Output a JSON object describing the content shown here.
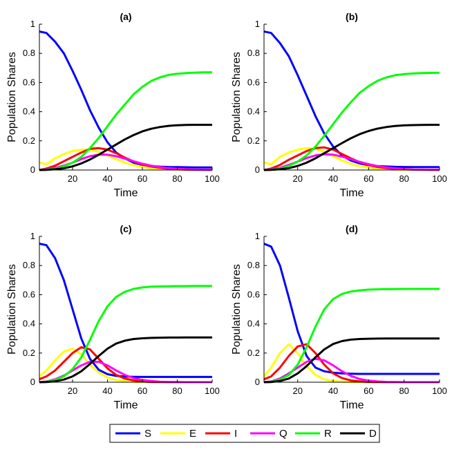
{
  "chart_data": {
    "type": "line",
    "xlim": [
      1,
      100
    ],
    "ylim": [
      0,
      1
    ],
    "x_ticks": [
      20,
      40,
      60,
      80,
      100
    ],
    "y_ticks": [
      0,
      0.2,
      0.4,
      0.6,
      0.8,
      1
    ],
    "y_tick_labels": [
      "0",
      "0.2",
      "0.4",
      "0.6",
      "0.8",
      "1"
    ],
    "xlabel": "Time",
    "ylabel": "Population Shares",
    "legend": {
      "position": "bottom-center",
      "entries": [
        {
          "name": "S",
          "color": "#0000ff"
        },
        {
          "name": "E",
          "color": "#ffff00"
        },
        {
          "name": "I",
          "color": "#ff0000"
        },
        {
          "name": "Q",
          "color": "#ff00ff"
        },
        {
          "name": "R",
          "color": "#00ff00"
        },
        {
          "name": "D",
          "color": "#000000"
        }
      ]
    },
    "panels": [
      {
        "title": "(a)",
        "x": [
          1,
          5,
          10,
          15,
          20,
          25,
          30,
          35,
          40,
          45,
          50,
          55,
          60,
          65,
          70,
          75,
          80,
          85,
          90,
          95,
          100
        ],
        "series": [
          {
            "name": "S",
            "values": [
              0.95,
              0.94,
              0.88,
              0.8,
              0.68,
              0.55,
              0.41,
              0.29,
              0.19,
              0.12,
              0.08,
              0.05,
              0.035,
              0.027,
              0.023,
              0.021,
              0.02,
              0.019,
              0.018,
              0.018,
              0.018
            ]
          },
          {
            "name": "E",
            "values": [
              0.05,
              0.04,
              0.08,
              0.11,
              0.13,
              0.14,
              0.14,
              0.125,
              0.1,
              0.075,
              0.05,
              0.033,
              0.021,
              0.013,
              0.008,
              0.005,
              0.003,
              0.002,
              0.001,
              0.001,
              0.0
            ]
          },
          {
            "name": "I",
            "values": [
              0.0,
              0.01,
              0.03,
              0.06,
              0.09,
              0.12,
              0.145,
              0.15,
              0.14,
              0.115,
              0.085,
              0.058,
              0.038,
              0.024,
              0.015,
              0.009,
              0.005,
              0.003,
              0.002,
              0.001,
              0.001
            ]
          },
          {
            "name": "Q",
            "values": [
              0.0,
              0.005,
              0.015,
              0.03,
              0.05,
              0.075,
              0.095,
              0.105,
              0.105,
              0.095,
              0.078,
              0.06,
              0.043,
              0.03,
              0.02,
              0.013,
              0.008,
              0.005,
              0.003,
              0.002,
              0.001
            ]
          },
          {
            "name": "R",
            "values": [
              0.0,
              0.002,
              0.01,
              0.025,
              0.05,
              0.09,
              0.15,
              0.22,
              0.3,
              0.38,
              0.45,
              0.52,
              0.57,
              0.61,
              0.635,
              0.652,
              0.66,
              0.665,
              0.668,
              0.67,
              0.67
            ]
          },
          {
            "name": "D",
            "values": [
              0.0,
              0.001,
              0.005,
              0.012,
              0.025,
              0.045,
              0.072,
              0.105,
              0.14,
              0.175,
              0.21,
              0.24,
              0.265,
              0.283,
              0.295,
              0.303,
              0.307,
              0.309,
              0.31,
              0.31,
              0.31
            ]
          }
        ]
      },
      {
        "title": "(b)",
        "x": [
          1,
          5,
          10,
          15,
          20,
          25,
          30,
          35,
          40,
          45,
          50,
          55,
          60,
          65,
          70,
          75,
          80,
          85,
          90,
          95,
          100
        ],
        "series": [
          {
            "name": "S",
            "values": [
              0.95,
              0.94,
              0.87,
              0.78,
              0.65,
              0.51,
              0.37,
              0.25,
              0.16,
              0.1,
              0.065,
              0.045,
              0.033,
              0.027,
              0.024,
              0.022,
              0.021,
              0.02,
              0.02,
              0.02,
              0.02
            ]
          },
          {
            "name": "E",
            "values": [
              0.05,
              0.04,
              0.09,
              0.12,
              0.14,
              0.15,
              0.145,
              0.125,
              0.095,
              0.065,
              0.042,
              0.026,
              0.016,
              0.01,
              0.006,
              0.004,
              0.002,
              0.001,
              0.001,
              0.0,
              0.0
            ]
          },
          {
            "name": "I",
            "values": [
              0.0,
              0.01,
              0.035,
              0.07,
              0.1,
              0.13,
              0.15,
              0.155,
              0.14,
              0.11,
              0.08,
              0.053,
              0.034,
              0.021,
              0.013,
              0.008,
              0.005,
              0.003,
              0.002,
              0.001,
              0.001
            ]
          },
          {
            "name": "Q",
            "values": [
              0.0,
              0.005,
              0.015,
              0.035,
              0.058,
              0.082,
              0.1,
              0.108,
              0.105,
              0.092,
              0.074,
              0.056,
              0.04,
              0.027,
              0.018,
              0.012,
              0.007,
              0.004,
              0.003,
              0.002,
              0.001
            ]
          },
          {
            "name": "R",
            "values": [
              0.0,
              0.002,
              0.01,
              0.028,
              0.058,
              0.1,
              0.16,
              0.235,
              0.315,
              0.395,
              0.465,
              0.53,
              0.575,
              0.612,
              0.635,
              0.65,
              0.658,
              0.662,
              0.665,
              0.666,
              0.667
            ]
          },
          {
            "name": "D",
            "values": [
              0.0,
              0.001,
              0.005,
              0.013,
              0.028,
              0.05,
              0.08,
              0.115,
              0.15,
              0.185,
              0.218,
              0.246,
              0.268,
              0.284,
              0.295,
              0.302,
              0.306,
              0.308,
              0.309,
              0.31,
              0.31
            ]
          }
        ]
      },
      {
        "title": "(c)",
        "x": [
          1,
          5,
          10,
          15,
          20,
          25,
          30,
          35,
          40,
          45,
          50,
          55,
          60,
          65,
          70,
          75,
          80,
          85,
          90,
          95,
          100
        ],
        "series": [
          {
            "name": "S",
            "values": [
              0.95,
              0.94,
              0.85,
              0.7,
              0.5,
              0.3,
              0.16,
              0.085,
              0.055,
              0.043,
              0.039,
              0.037,
              0.036,
              0.036,
              0.036,
              0.036,
              0.036,
              0.036,
              0.036,
              0.036,
              0.036
            ]
          },
          {
            "name": "E",
            "values": [
              0.04,
              0.08,
              0.15,
              0.21,
              0.23,
              0.19,
              0.12,
              0.065,
              0.032,
              0.015,
              0.007,
              0.003,
              0.001,
              0.0,
              0.0,
              0.0,
              0.0,
              0.0,
              0.0,
              0.0,
              0.0
            ]
          },
          {
            "name": "I",
            "values": [
              0.02,
              0.04,
              0.08,
              0.14,
              0.2,
              0.24,
              0.225,
              0.16,
              0.095,
              0.05,
              0.025,
              0.012,
              0.005,
              0.002,
              0.001,
              0.0,
              0.0,
              0.0,
              0.0,
              0.0,
              0.0
            ]
          },
          {
            "name": "Q",
            "values": [
              0.0,
              0.005,
              0.02,
              0.045,
              0.08,
              0.115,
              0.14,
              0.14,
              0.115,
              0.08,
              0.05,
              0.028,
              0.015,
              0.008,
              0.004,
              0.002,
              0.001,
              0.0,
              0.0,
              0.0,
              0.0
            ]
          },
          {
            "name": "R",
            "values": [
              0.0,
              0.003,
              0.015,
              0.04,
              0.09,
              0.17,
              0.29,
              0.42,
              0.52,
              0.585,
              0.62,
              0.64,
              0.65,
              0.655,
              0.657,
              0.658,
              0.659,
              0.659,
              0.66,
              0.66,
              0.66
            ]
          },
          {
            "name": "D",
            "values": [
              0.0,
              0.001,
              0.006,
              0.018,
              0.04,
              0.075,
              0.125,
              0.18,
              0.23,
              0.265,
              0.285,
              0.296,
              0.301,
              0.304,
              0.305,
              0.306,
              0.306,
              0.307,
              0.307,
              0.307,
              0.307
            ]
          }
        ]
      },
      {
        "title": "(d)",
        "x": [
          1,
          5,
          10,
          15,
          20,
          25,
          30,
          35,
          40,
          45,
          50,
          55,
          60,
          65,
          70,
          75,
          80,
          85,
          90,
          95,
          100
        ],
        "series": [
          {
            "name": "S",
            "values": [
              0.95,
              0.93,
              0.8,
              0.58,
              0.35,
              0.18,
              0.1,
              0.075,
              0.065,
              0.06,
              0.058,
              0.057,
              0.057,
              0.057,
              0.057,
              0.057,
              0.057,
              0.057,
              0.057,
              0.057,
              0.057
            ]
          },
          {
            "name": "E",
            "values": [
              0.04,
              0.1,
              0.2,
              0.26,
              0.2,
              0.11,
              0.05,
              0.02,
              0.008,
              0.003,
              0.001,
              0.0,
              0.0,
              0.0,
              0.0,
              0.0,
              0.0,
              0.0,
              0.0,
              0.0,
              0.0
            ]
          },
          {
            "name": "I",
            "values": [
              0.02,
              0.04,
              0.1,
              0.18,
              0.245,
              0.26,
              0.2,
              0.12,
              0.06,
              0.028,
              0.012,
              0.005,
              0.002,
              0.001,
              0.0,
              0.0,
              0.0,
              0.0,
              0.0,
              0.0,
              0.0
            ]
          },
          {
            "name": "Q",
            "values": [
              0.0,
              0.005,
              0.025,
              0.06,
              0.1,
              0.14,
              0.16,
              0.15,
              0.115,
              0.075,
              0.043,
              0.022,
              0.011,
              0.005,
              0.002,
              0.001,
              0.0,
              0.0,
              0.0,
              0.0,
              0.0
            ]
          },
          {
            "name": "R",
            "values": [
              0.0,
              0.003,
              0.018,
              0.05,
              0.12,
              0.24,
              0.38,
              0.5,
              0.57,
              0.605,
              0.622,
              0.63,
              0.635,
              0.637,
              0.638,
              0.639,
              0.64,
              0.64,
              0.64,
              0.64,
              0.64
            ]
          },
          {
            "name": "D",
            "values": [
              0.0,
              0.001,
              0.008,
              0.025,
              0.06,
              0.11,
              0.17,
              0.225,
              0.262,
              0.282,
              0.292,
              0.296,
              0.298,
              0.299,
              0.3,
              0.3,
              0.3,
              0.3,
              0.3,
              0.3,
              0.3
            ]
          }
        ]
      }
    ]
  }
}
